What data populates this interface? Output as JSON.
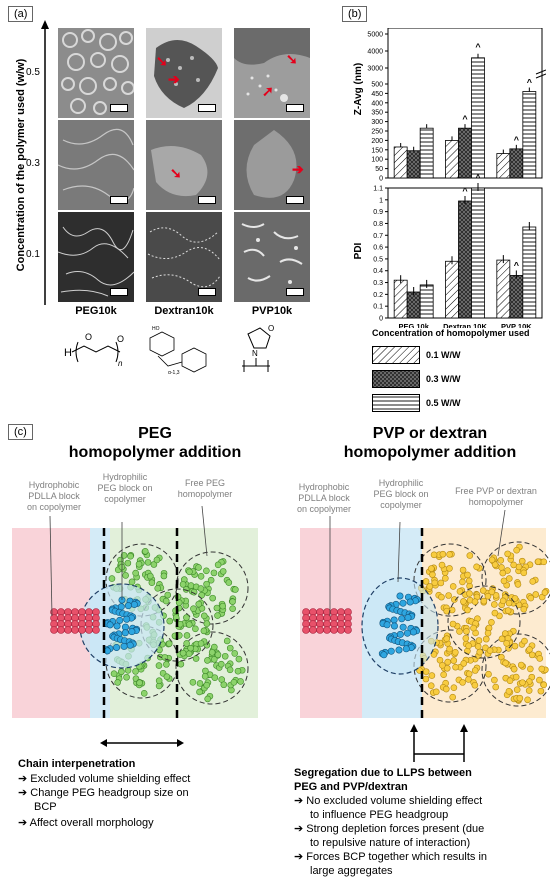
{
  "panel_a": {
    "tag": "(a)",
    "y_axis_label": "Concentration of the polymer used (w/w)",
    "conc_ticks": [
      "0.5",
      "0.3",
      "0.1"
    ],
    "columns": [
      "PEG10k",
      "Dextran10k",
      "PVP10k"
    ]
  },
  "panel_b": {
    "tag": "(b)",
    "legend_title": "Concentration of homopolymer used",
    "legend": [
      "0.1 W/W",
      "0.3 W/W",
      "0.5 W/W"
    ]
  },
  "chart_data": [
    {
      "type": "bar",
      "ylabel": "Z-Avg (nm)",
      "categories": [
        "PEG 10k",
        "Dextran 10K",
        "PVP 10K"
      ],
      "yticks": [
        "0",
        "50",
        "100",
        "150",
        "200",
        "250",
        "300",
        "350",
        "400",
        "450",
        "500",
        "3000",
        "4000",
        "5000"
      ],
      "series": [
        {
          "name": "0.1 W/W",
          "values": [
            165,
            200,
            130
          ]
        },
        {
          "name": "0.3 W/W",
          "values": [
            145,
            265,
            155
          ]
        },
        {
          "name": "0.5 W/W",
          "values": [
            265,
            3600,
            460
          ]
        }
      ],
      "annotations": [
        "^",
        "^",
        "^",
        "^"
      ]
    },
    {
      "type": "bar",
      "ylabel": "PDI",
      "categories": [
        "PEG 10k",
        "Dextran 10K",
        "PVP 10K"
      ],
      "ylim": [
        0,
        1.1
      ],
      "yticks": [
        "0",
        "0.1",
        "0.2",
        "0.3",
        "0.4",
        "0.5",
        "0.6",
        "0.7",
        "0.8",
        "0.9",
        "1",
        "1.1"
      ],
      "series": [
        {
          "name": "0.1 W/W",
          "values": [
            0.32,
            0.48,
            0.49
          ]
        },
        {
          "name": "0.3 W/W",
          "values": [
            0.22,
            0.99,
            0.36
          ]
        },
        {
          "name": "0.5 W/W",
          "values": [
            0.28,
            1.1,
            0.77
          ]
        }
      ],
      "annotations": [
        "^",
        "^",
        "^"
      ]
    }
  ],
  "panel_c": {
    "tag": "(c)",
    "left": {
      "heading": [
        "PEG",
        "homopolymer  addition"
      ],
      "label_pdlla": [
        "Hydrophobic",
        "PDLLA block",
        "on copolymer"
      ],
      "label_peg": [
        "Hydrophilic",
        "PEG block on",
        "copolymer"
      ],
      "label_free": [
        "Free PEG",
        "homopolymer"
      ],
      "title": "Chain interpenetration",
      "bullets": [
        "Excluded volume shielding effect",
        "Change PEG headgroup size on",
        "BCP",
        "Affect overall morphology"
      ]
    },
    "right": {
      "heading": [
        "PVP or dextran",
        "homopolymer  addition"
      ],
      "label_pdlla": [
        "Hydrophobic",
        "PDLLA block",
        "on copolymer"
      ],
      "label_peg": [
        "Hydrophilic",
        "PEG block on",
        "copolymer"
      ],
      "label_free": [
        "Free PVP or dextran",
        "homopolymer"
      ],
      "title": [
        "Segregation due to LLPS between",
        "PEG and PVP/dextran"
      ],
      "bullets": [
        "No excluded volume shielding effect",
        "to influence PEG headgroup",
        "Strong depletion forces present (due",
        "to repulsive nature of interaction)",
        "Forces BCP together which results in",
        "large aggregates"
      ]
    }
  }
}
